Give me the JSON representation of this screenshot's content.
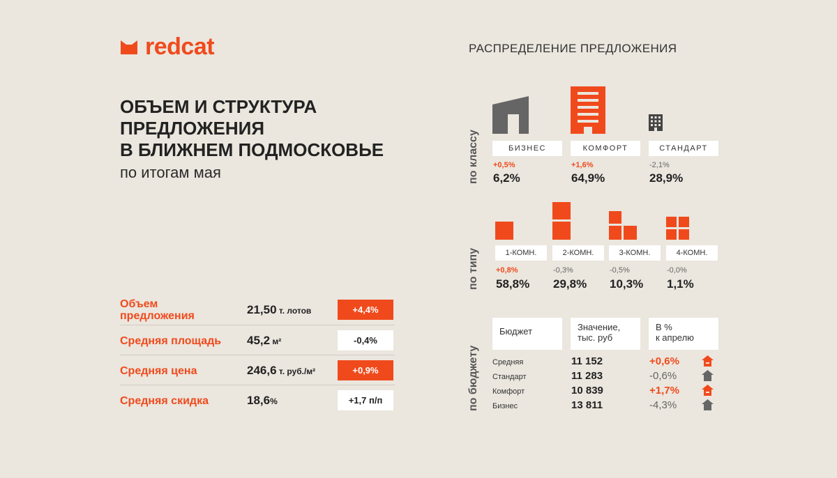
{
  "brand": {
    "name": "redcat",
    "accent": "#f04a1c"
  },
  "headline": {
    "line1": "ОБЪЕМ И СТРУКТУРА",
    "line2": "ПРЕДЛОЖЕНИЯ",
    "line3": "В БЛИЖНЕМ ПОДМОСКОВЬЕ",
    "subtitle": "по итогам мая"
  },
  "metrics": [
    {
      "label_line1": "Объем",
      "label_line2": "предложения",
      "value": "21,50",
      "unit": " т. лотов",
      "change": "+4,4%",
      "trend": "up"
    },
    {
      "label_line1": "Средняя площадь",
      "label_line2": "",
      "value": "45,2",
      "unit": " м²",
      "change": "-0,4%",
      "trend": "neutral"
    },
    {
      "label_line1": "Средняя цена",
      "label_line2": "",
      "value": "246,6",
      "unit": " т. руб./м²",
      "change": "+0,9%",
      "trend": "up"
    },
    {
      "label_line1": "Средняя скидка",
      "label_line2": "",
      "value": "18,6",
      "unit": "%",
      "change": "+1,7 п/п",
      "trend": "neutral"
    }
  ],
  "distribution": {
    "title": "РАСПРЕДЕЛЕНИЕ ПРЕДЛОЖЕНИЯ",
    "by_class": {
      "label": "по классу",
      "items": [
        {
          "name": "БИЗНЕС",
          "delta": "+0,5%",
          "trend": "up",
          "share": "6,2%",
          "icon": "business-building-icon"
        },
        {
          "name": "КОМФОРТ",
          "delta": "+1,6%",
          "trend": "up",
          "share": "64,9%",
          "icon": "comfort-building-icon"
        },
        {
          "name": "СТАНДАРТ",
          "delta": "-2,1%",
          "trend": "down",
          "share": "28,9%",
          "icon": "standard-building-icon"
        }
      ]
    },
    "by_type": {
      "label": "по типу",
      "items": [
        {
          "name": "1-КОМН.",
          "delta": "+0,8%",
          "trend": "up",
          "share": "58,8%",
          "icon": "one-room-icon"
        },
        {
          "name": "2-КОМН.",
          "delta": "-0,3%",
          "trend": "down",
          "share": "29,8%",
          "icon": "two-room-icon"
        },
        {
          "name": "3-КОМН.",
          "delta": "-0,5%",
          "trend": "down",
          "share": "10,3%",
          "icon": "three-room-icon"
        },
        {
          "name": "4-КОМН.",
          "delta": "-0,0%",
          "trend": "down",
          "share": "1,1%",
          "icon": "four-room-icon"
        }
      ]
    },
    "by_budget": {
      "label": "по бюджету",
      "headers": {
        "col1": "Бюджет",
        "col2_line1": "Значение,",
        "col2_line2": "тыс. руб",
        "col3_line1": "В %",
        "col3_line2": "к апрелю"
      },
      "rows": [
        {
          "name": "Средняя",
          "value": "11 152",
          "change": "+0,6%",
          "trend": "up"
        },
        {
          "name": "Стандарт",
          "value": "11 283",
          "change": "-0,6%",
          "trend": "down"
        },
        {
          "name": "Комфорт",
          "value": "10 839",
          "change": "+1,7%",
          "trend": "up"
        },
        {
          "name": "Бизнес",
          "value": "13 811",
          "change": "-4,3%",
          "trend": "down"
        }
      ]
    }
  }
}
